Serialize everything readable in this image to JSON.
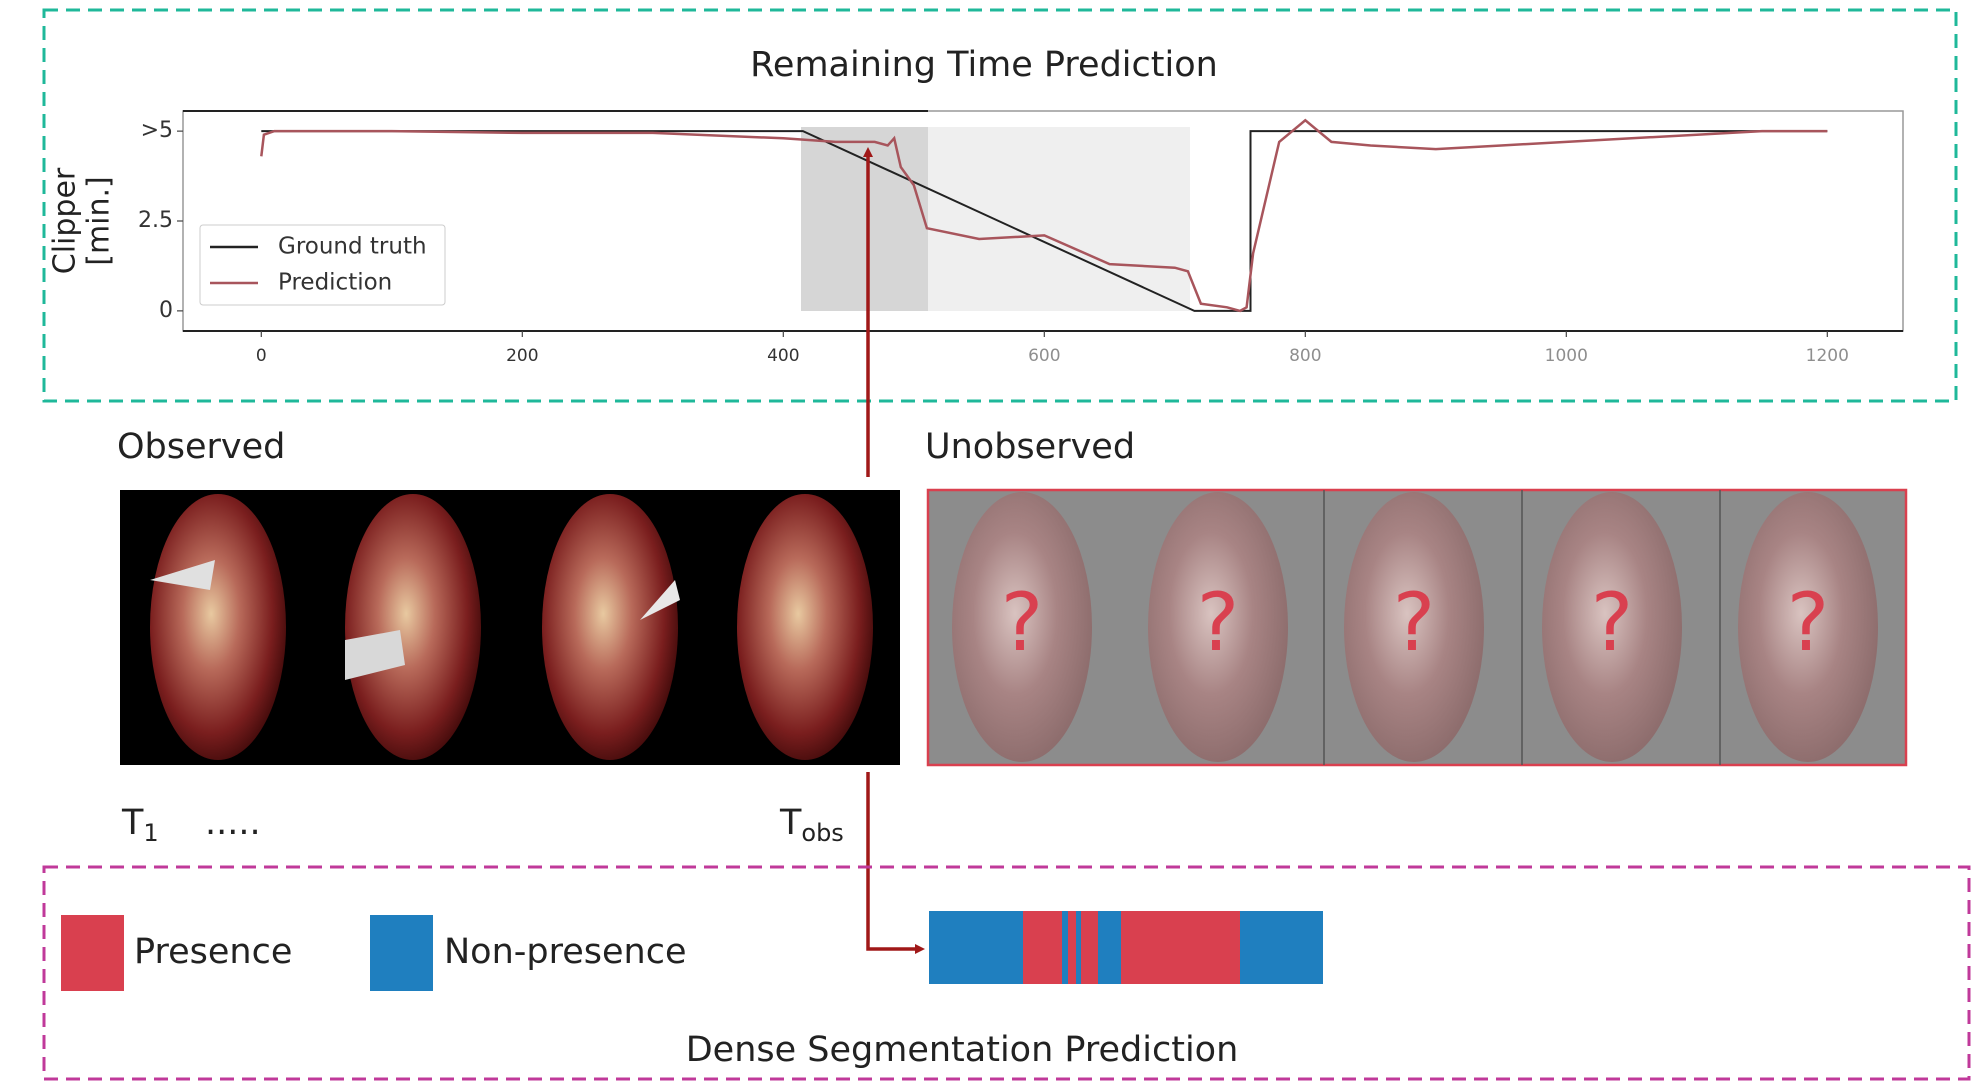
{
  "header": {
    "title": "Remaining Time Prediction"
  },
  "chart": {
    "type": "line",
    "ylabel": [
      "Clipper",
      "[min.]"
    ],
    "xlim": [
      -60,
      1258
    ],
    "ylim": [
      -0.56,
      5.56
    ],
    "xticks": [
      0,
      200,
      400,
      600,
      800,
      1000,
      1200
    ],
    "yticks": [
      0,
      2.5,
      {
        "value": 5,
        "label": ">5"
      }
    ],
    "legend": "upper left",
    "series": [
      {
        "name": "Ground truth",
        "color": "#222222",
        "x": [
          0,
          415,
          715,
          758,
          758,
          1200
        ],
        "values": [
          5,
          5,
          0,
          0,
          5,
          5
        ]
      },
      {
        "name": "Prediction",
        "color": "#a8555c",
        "x": [
          0,
          2,
          10,
          100,
          200,
          300,
          400,
          440,
          470,
          480,
          485,
          490,
          500,
          510,
          550,
          600,
          650,
          700,
          710,
          720,
          740,
          750,
          755,
          760,
          780,
          800,
          820,
          850,
          900,
          950,
          1000,
          1050,
          1100,
          1150,
          1200
        ],
        "values": [
          4.3,
          4.9,
          5.0,
          5.0,
          4.95,
          4.95,
          4.8,
          4.7,
          4.7,
          4.6,
          4.8,
          4.0,
          3.5,
          2.3,
          2.0,
          2.1,
          1.3,
          1.2,
          1.1,
          0.2,
          0.1,
          0.0,
          0.1,
          1.6,
          4.7,
          5.3,
          4.7,
          4.6,
          4.5,
          4.6,
          4.7,
          4.8,
          4.9,
          5.0,
          5.0
        ]
      }
    ]
  },
  "observed": {
    "label": "Observed"
  },
  "unobserved": {
    "label": "Unobserved",
    "marks": [
      "?",
      "?",
      "?",
      "?",
      "?"
    ]
  },
  "t_labels": [
    {
      "main": "T",
      "sub": "1",
      "dots": "....."
    },
    {
      "main": "T",
      "sub": "obs"
    }
  ],
  "legend": [
    {
      "label": "Presence"
    },
    {
      "label": "Non-presence"
    }
  ],
  "footer": {
    "title": "Dense Segmentation Prediction"
  }
}
